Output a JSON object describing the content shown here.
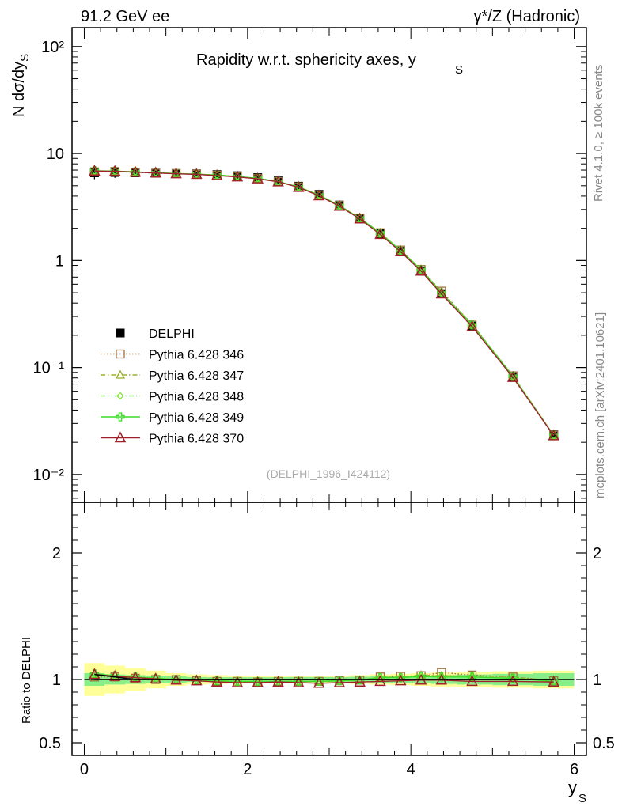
{
  "header": {
    "left": "91.2 GeV ee",
    "right": "γ*/Z (Hadronic)"
  },
  "side": {
    "rivet": "Rivet 4.1.0, ≥ 100k events",
    "mcplots": "mcplots.cern.ch [arXiv:2401.10621]"
  },
  "chart_data": {
    "type": "line",
    "title": "Rapidity w.r.t. sphericity axes, y_S",
    "analysis_tag": "(DELPHI_1996_I424112)",
    "xlabel": "y_S",
    "ylabel": "N  dσ/dy_S",
    "ratio_ylabel": "Ratio to DELPHI",
    "xlim": [
      -0.15,
      6.15
    ],
    "ylim": [
      0.0055,
      150
    ],
    "ratio_ylim": [
      0.4,
      2.4
    ],
    "yscale": "log",
    "x_ticks": [
      0,
      2,
      4,
      6
    ],
    "x_tick_labels": [
      "0",
      "2",
      "4",
      "6"
    ],
    "y_ticks": [
      0.01,
      0.1,
      1,
      10,
      100
    ],
    "y_tick_labels": [
      "10⁻²",
      "10⁻¹",
      "1",
      "10",
      "10²"
    ],
    "ratio_ticks": [
      0.5,
      1,
      2
    ],
    "ratio_tick_labels": [
      "0.5",
      "1",
      "2"
    ],
    "x": [
      0.125,
      0.375,
      0.625,
      0.875,
      1.125,
      1.375,
      1.625,
      1.875,
      2.125,
      2.375,
      2.625,
      2.875,
      3.125,
      3.375,
      3.625,
      3.875,
      4.125,
      4.375,
      4.75,
      5.25,
      5.75
    ],
    "data": {
      "name": "DELPHI",
      "values": [
        6.6,
        6.65,
        6.6,
        6.55,
        6.5,
        6.45,
        6.35,
        6.2,
        5.95,
        5.55,
        4.95,
        4.15,
        3.3,
        2.5,
        1.78,
        1.22,
        0.8,
        0.49,
        0.245,
        0.082,
        0.0235
      ],
      "rel_err_inner": [
        0.05,
        0.04,
        0.035,
        0.03,
        0.025,
        0.02,
        0.018,
        0.018,
        0.018,
        0.018,
        0.02,
        0.02,
        0.02,
        0.022,
        0.025,
        0.03,
        0.03,
        0.035,
        0.04,
        0.045,
        0.05
      ],
      "rel_err_outer": [
        0.13,
        0.11,
        0.09,
        0.07,
        0.05,
        0.04,
        0.035,
        0.032,
        0.03,
        0.03,
        0.03,
        0.03,
        0.03,
        0.035,
        0.04,
        0.045,
        0.05,
        0.055,
        0.06,
        0.065,
        0.07
      ]
    },
    "series": [
      {
        "name": "Pythia 6.428 346",
        "color": "#a0703c",
        "dash": "1.5,2.5",
        "marker": "square",
        "ratio": [
          1.02,
          1.02,
          1.01,
          1.0,
          1.0,
          0.99,
          0.985,
          0.985,
          0.98,
          0.985,
          0.985,
          0.985,
          0.99,
          0.995,
          1.02,
          1.025,
          1.03,
          1.055,
          1.035,
          1.02,
          0.99
        ]
      },
      {
        "name": "Pythia 6.428 347",
        "color": "#9aad2f",
        "dash": "6,3,1.5,3",
        "marker": "triangle",
        "ratio": [
          1.04,
          1.03,
          1.02,
          1.01,
          1.0,
          0.995,
          0.985,
          0.98,
          0.98,
          0.985,
          0.985,
          0.985,
          0.99,
          0.995,
          1.02,
          1.02,
          1.035,
          1.03,
          1.03,
          1.02,
          0.99
        ]
      },
      {
        "name": "Pythia 6.428 348",
        "color": "#8ee63e",
        "dash": "6,3,1.5,3,1.5,3",
        "marker": "diamond",
        "ratio": [
          1.045,
          1.03,
          1.02,
          1.01,
          1.0,
          0.995,
          0.99,
          0.985,
          0.985,
          0.985,
          0.985,
          0.985,
          0.99,
          0.995,
          1.02,
          1.02,
          1.03,
          1.02,
          1.02,
          1.01,
          0.985
        ]
      },
      {
        "name": "Pythia 6.428 349",
        "color": "#3cdc28",
        "dash": "",
        "marker": "cross",
        "ratio": [
          1.045,
          1.03,
          1.02,
          1.01,
          1.0,
          0.995,
          0.99,
          0.985,
          0.985,
          0.985,
          0.985,
          0.985,
          0.99,
          0.995,
          1.015,
          1.015,
          1.025,
          1.02,
          1.02,
          1.01,
          0.985
        ]
      },
      {
        "name": "Pythia 6.428 370",
        "color": "#a0202c",
        "dash": "",
        "marker": "triangle-open",
        "ratio": [
          1.04,
          1.025,
          1.015,
          1.005,
          0.995,
          0.99,
          0.98,
          0.975,
          0.975,
          0.98,
          0.975,
          0.97,
          0.975,
          0.98,
          0.985,
          0.99,
          0.995,
          0.995,
          0.985,
          0.985,
          0.98
        ]
      }
    ]
  }
}
